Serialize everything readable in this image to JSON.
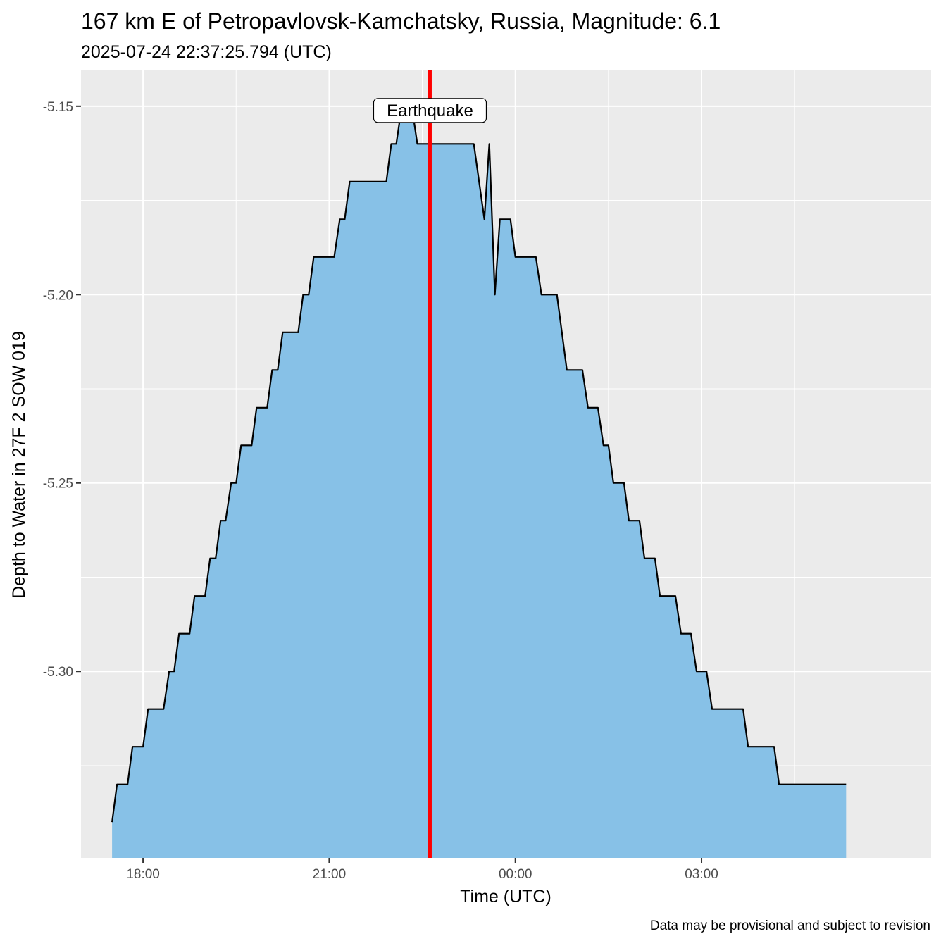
{
  "chart_data": {
    "type": "area",
    "title": "167 km E of Petropavlovsk-Kamchatsky, Russia, Magnitude: 6.1",
    "subtitle": "2025-07-24 22:37:25.794 (UTC)",
    "xlabel": "Time (UTC)",
    "ylabel": "Depth to Water in 27F 2 SOW 019",
    "caption": "Data may be provisional and subject to revision",
    "x_unit": "hours since 2025-07-24 00:00 UTC",
    "xlim": [
      17.0,
      30.7
    ],
    "ylim": [
      -5.3495,
      -5.1405
    ],
    "x_ticks": [
      {
        "value": 18,
        "label": "18:00"
      },
      {
        "value": 21,
        "label": "21:00"
      },
      {
        "value": 24,
        "label": "00:00"
      },
      {
        "value": 27,
        "label": "03:00"
      }
    ],
    "x_minor": [
      19.5,
      22.5,
      25.5,
      28.5
    ],
    "y_ticks": [
      {
        "value": -5.15,
        "label": "-5.15"
      },
      {
        "value": -5.2,
        "label": "-5.20"
      },
      {
        "value": -5.25,
        "label": "-5.25"
      },
      {
        "value": -5.3,
        "label": "-5.30"
      }
    ],
    "y_minor": [
      -5.175,
      -5.225,
      -5.275,
      -5.325
    ],
    "event": {
      "x": 22.6238,
      "label": "Earthquake",
      "color": "#FF0000"
    },
    "area_color": "#87C1E7",
    "line_color": "#000000",
    "series": [
      {
        "name": "Depth to Water",
        "points": [
          [
            17.5,
            -5.34
          ],
          [
            17.58,
            -5.33
          ],
          [
            17.75,
            -5.33
          ],
          [
            17.83,
            -5.32
          ],
          [
            18.0,
            -5.32
          ],
          [
            18.08,
            -5.31
          ],
          [
            18.33,
            -5.31
          ],
          [
            18.42,
            -5.3
          ],
          [
            18.5,
            -5.3
          ],
          [
            18.58,
            -5.29
          ],
          [
            18.75,
            -5.29
          ],
          [
            18.83,
            -5.28
          ],
          [
            19.0,
            -5.28
          ],
          [
            19.08,
            -5.27
          ],
          [
            19.17,
            -5.27
          ],
          [
            19.25,
            -5.26
          ],
          [
            19.33,
            -5.26
          ],
          [
            19.42,
            -5.25
          ],
          [
            19.5,
            -5.25
          ],
          [
            19.58,
            -5.24
          ],
          [
            19.75,
            -5.24
          ],
          [
            19.83,
            -5.23
          ],
          [
            20.0,
            -5.23
          ],
          [
            20.08,
            -5.22
          ],
          [
            20.17,
            -5.22
          ],
          [
            20.25,
            -5.21
          ],
          [
            20.5,
            -5.21
          ],
          [
            20.58,
            -5.2
          ],
          [
            20.67,
            -5.2
          ],
          [
            20.75,
            -5.19
          ],
          [
            21.08,
            -5.19
          ],
          [
            21.17,
            -5.18
          ],
          [
            21.25,
            -5.18
          ],
          [
            21.33,
            -5.17
          ],
          [
            21.92,
            -5.17
          ],
          [
            22.0,
            -5.16
          ],
          [
            22.08,
            -5.16
          ],
          [
            22.17,
            -5.15
          ],
          [
            22.33,
            -5.15
          ],
          [
            22.42,
            -5.16
          ],
          [
            23.33,
            -5.16
          ],
          [
            23.5,
            -5.18
          ],
          [
            23.58,
            -5.16
          ],
          [
            23.67,
            -5.2
          ],
          [
            23.75,
            -5.18
          ],
          [
            23.92,
            -5.18
          ],
          [
            24.0,
            -5.19
          ],
          [
            24.33,
            -5.19
          ],
          [
            24.42,
            -5.2
          ],
          [
            24.67,
            -5.2
          ],
          [
            24.83,
            -5.22
          ],
          [
            25.08,
            -5.22
          ],
          [
            25.17,
            -5.23
          ],
          [
            25.33,
            -5.23
          ],
          [
            25.42,
            -5.24
          ],
          [
            25.5,
            -5.24
          ],
          [
            25.58,
            -5.25
          ],
          [
            25.75,
            -5.25
          ],
          [
            25.83,
            -5.26
          ],
          [
            26.0,
            -5.26
          ],
          [
            26.08,
            -5.27
          ],
          [
            26.25,
            -5.27
          ],
          [
            26.33,
            -5.28
          ],
          [
            26.58,
            -5.28
          ],
          [
            26.67,
            -5.29
          ],
          [
            26.83,
            -5.29
          ],
          [
            26.92,
            -5.3
          ],
          [
            27.08,
            -5.3
          ],
          [
            27.17,
            -5.31
          ],
          [
            27.67,
            -5.31
          ],
          [
            27.75,
            -5.32
          ],
          [
            28.17,
            -5.32
          ],
          [
            28.25,
            -5.33
          ],
          [
            29.33,
            -5.33
          ]
        ]
      }
    ]
  }
}
